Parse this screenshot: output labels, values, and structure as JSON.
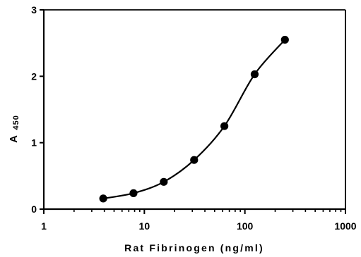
{
  "chart_data": {
    "type": "scatter",
    "title": "",
    "xlabel": "Rat Fibrinogen (ng/ml)",
    "ylabel": {
      "main": "A",
      "subscript": "450"
    },
    "xscale": "log",
    "xlim": [
      1,
      1000
    ],
    "ylim": [
      0,
      3
    ],
    "x_ticks": [
      1,
      10,
      100,
      1000
    ],
    "x_tick_labels": [
      "1",
      "10",
      "100",
      "1000"
    ],
    "y_ticks": [
      0,
      1,
      2,
      3
    ],
    "y_tick_labels": [
      "0",
      "1",
      "2",
      "3"
    ],
    "grid": false,
    "legend": "none",
    "series": [
      {
        "x": [
          3.9,
          7.8,
          15.6,
          31.25,
          62.5,
          125,
          250
        ],
        "y": [
          0.16,
          0.24,
          0.41,
          0.74,
          1.25,
          2.03,
          2.55
        ],
        "marker": "circle",
        "color": "#000000",
        "fit": "sigmoid"
      }
    ]
  }
}
